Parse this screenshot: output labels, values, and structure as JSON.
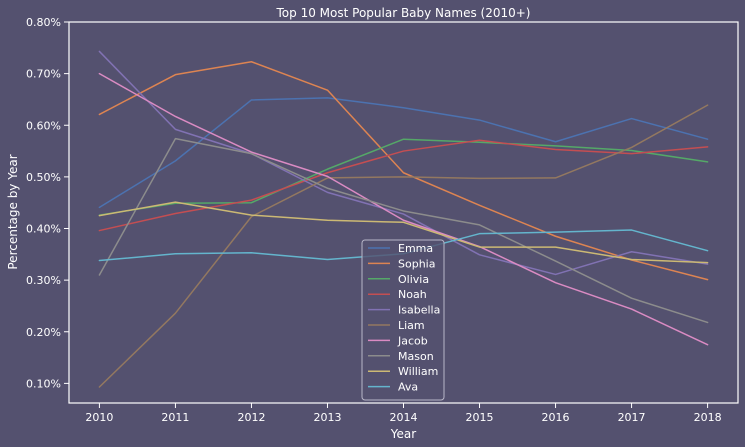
{
  "chart_data": {
    "type": "line",
    "title": "Top 10 Most Popular Baby Names (2010+)",
    "xlabel": "Year",
    "ylabel": "Percentage by Year",
    "x": [
      2010,
      2011,
      2012,
      2013,
      2014,
      2015,
      2016,
      2017,
      2018
    ],
    "x_tick_labels": [
      "2010",
      "2011",
      "2012",
      "2013",
      "2014",
      "2015",
      "2016",
      "2017",
      "2018"
    ],
    "y_ticks": [
      0.1,
      0.2,
      0.3,
      0.4,
      0.5,
      0.6,
      0.7,
      0.8
    ],
    "y_tick_labels": [
      "0.10%",
      "0.20%",
      "0.30%",
      "0.40%",
      "0.50%",
      "0.60%",
      "0.70%",
      "0.80%"
    ],
    "ylim": [
      0.062,
      0.8
    ],
    "xlim": [
      2009.6,
      2018.4
    ],
    "grid": false,
    "legend_position": "lower-center",
    "series": [
      {
        "name": "Emma",
        "color": "#4c72b0",
        "values": [
          0.441,
          0.531,
          0.649,
          0.653,
          0.634,
          0.61,
          0.568,
          0.613,
          0.573
        ]
      },
      {
        "name": "Sophia",
        "color": "#dd8452",
        "values": [
          0.621,
          0.698,
          0.723,
          0.668,
          0.508,
          0.445,
          0.385,
          0.339,
          0.301
        ]
      },
      {
        "name": "Olivia",
        "color": "#55a868",
        "values": [
          0.426,
          0.449,
          0.45,
          0.515,
          0.573,
          0.567,
          0.56,
          0.551,
          0.529
        ]
      },
      {
        "name": "Noah",
        "color": "#c44e52",
        "values": [
          0.396,
          0.429,
          0.455,
          0.508,
          0.55,
          0.571,
          0.553,
          0.545,
          0.558
        ]
      },
      {
        "name": "Isabella",
        "color": "#8172b3",
        "values": [
          0.743,
          0.592,
          0.545,
          0.47,
          0.428,
          0.349,
          0.311,
          0.355,
          0.331
        ]
      },
      {
        "name": "Liam",
        "color": "#937860",
        "values": [
          0.093,
          0.236,
          0.423,
          0.498,
          0.5,
          0.497,
          0.498,
          0.557,
          0.639
        ]
      },
      {
        "name": "Jacob",
        "color": "#da8bc3",
        "values": [
          0.7,
          0.617,
          0.548,
          0.501,
          0.416,
          0.365,
          0.295,
          0.244,
          0.175
        ]
      },
      {
        "name": "Mason",
        "color": "#8c8c8c",
        "values": [
          0.31,
          0.574,
          0.545,
          0.478,
          0.434,
          0.407,
          0.337,
          0.265,
          0.218
        ]
      },
      {
        "name": "William",
        "color": "#ccb974",
        "values": [
          0.425,
          0.451,
          0.426,
          0.416,
          0.412,
          0.364,
          0.364,
          0.34,
          0.334
        ]
      },
      {
        "name": "Ava",
        "color": "#64b5cd",
        "values": [
          0.338,
          0.351,
          0.353,
          0.34,
          0.351,
          0.39,
          0.393,
          0.397,
          0.357
        ]
      }
    ]
  },
  "colors": {
    "background": "#54516f",
    "axes_face": "#54516f",
    "spine": "#ffffff",
    "text": "#ffffff",
    "legend_frame": "#b8b6c8"
  }
}
